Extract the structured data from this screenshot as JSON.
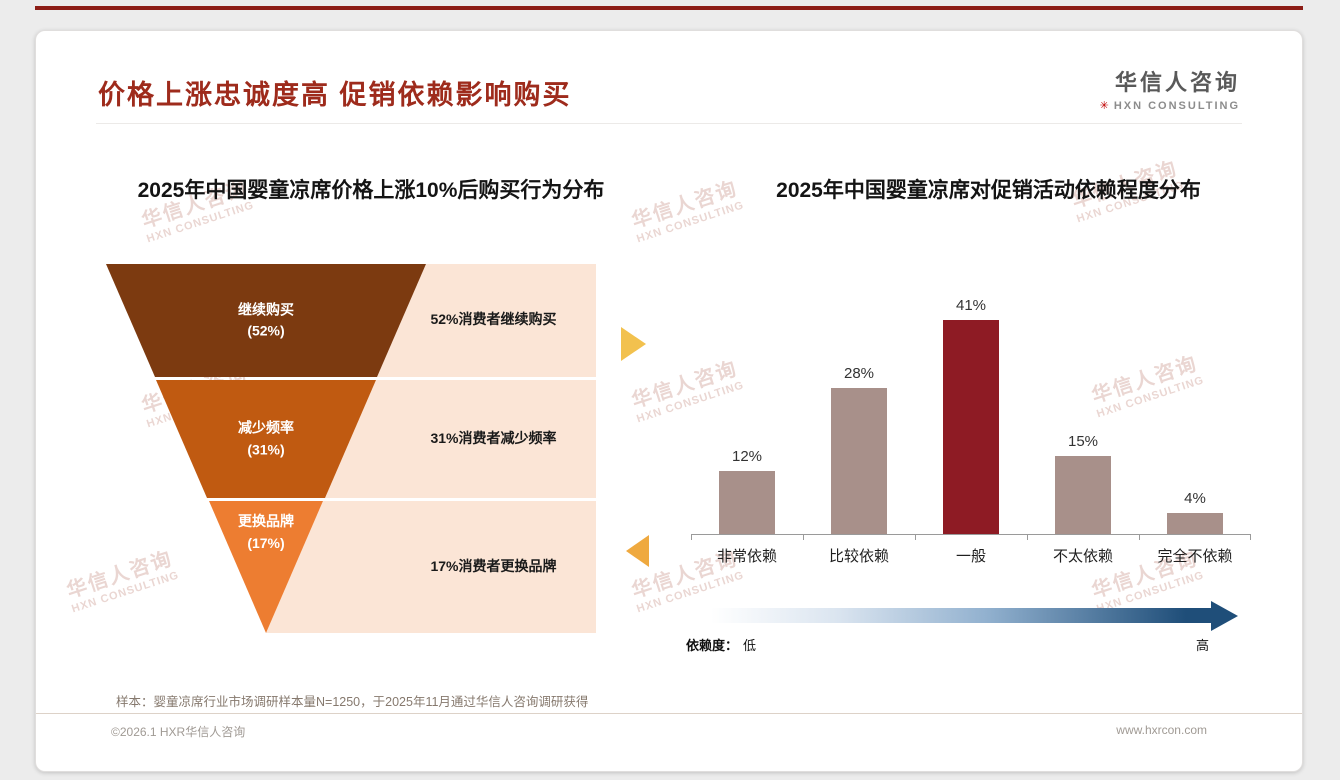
{
  "slide": {
    "title": "价格上涨忠诚度高 促销依赖影响购买",
    "logo": {
      "name": "华信人咨询",
      "tagline": "HXN CONSULTING",
      "mark": "✳"
    },
    "watermark": {
      "line1": "华信人咨询",
      "line2": "HXN CONSULTING"
    },
    "footnote": "样本：婴童凉席行业市场调研样本量N=1250，于2025年11月通过华信人咨询调研获得",
    "footer": {
      "copyright": "©2026.1 HXR华信人咨询",
      "website": "www.hxrcon.com"
    },
    "colors": {
      "accent_red": "#9e2b1c",
      "top_rule": "#8c1d16",
      "panel_bg": "#fbe5d6",
      "bar_default": "#a8908a",
      "bar_highlight": "#8e1b24",
      "gradient_dark": "#1f4e79",
      "arrow_right": "#f2c14e",
      "arrow_left": "#efa93f"
    }
  },
  "chart_data": [
    {
      "type": "funnel",
      "title": "2025年中国婴童凉席价格上涨10%后购买行为分布",
      "levels": [
        {
          "label": "继续购买",
          "pct": "(52%)",
          "value": 52,
          "annotation": "52%消费者继续购买",
          "color": "#7c3a10"
        },
        {
          "label": "减少频率",
          "pct": "(31%)",
          "value": 31,
          "annotation": "31%消费者减少频率",
          "color": "#c05a11"
        },
        {
          "label": "更换品牌",
          "pct": "(17%)",
          "value": 17,
          "annotation": "17%消费者更换品牌",
          "color": "#ed7d31"
        }
      ]
    },
    {
      "type": "bar",
      "title": "2025年中国婴童凉席对促销活动依赖程度分布",
      "categories": [
        "非常依赖",
        "比较依赖",
        "一般",
        "不太依赖",
        "完全不依赖"
      ],
      "values": [
        12,
        28,
        41,
        15,
        4
      ],
      "value_labels": [
        "12%",
        "28%",
        "41%",
        "15%",
        "4%"
      ],
      "bar_colors": [
        "#a8908a",
        "#a8908a",
        "#8e1b24",
        "#a8908a",
        "#a8908a"
      ],
      "ylim": [
        0,
        45
      ],
      "grid": false,
      "legend": {
        "label": "依赖度：",
        "low": "低",
        "high": "高"
      }
    }
  ]
}
